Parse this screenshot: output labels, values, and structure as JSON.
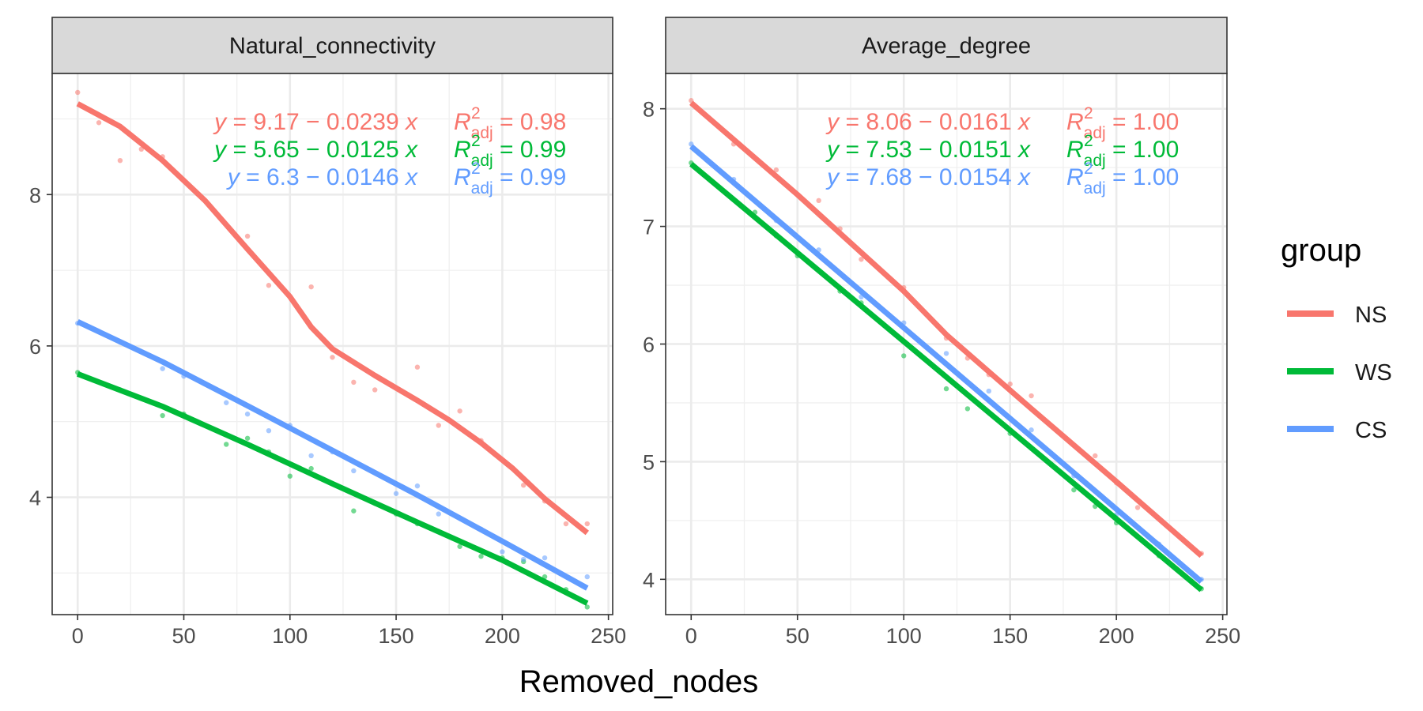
{
  "chart_data": {
    "type": "scatter",
    "facets": [
      {
        "title": "Natural_connectivity",
        "ylim": [
          2.45,
          9.6
        ],
        "yticks": [
          4,
          6,
          8
        ],
        "equations": [
          {
            "group": "NS",
            "lhs": "y",
            "eq": " = 9.17 − 0.0239 ",
            "var": "x",
            "r2_label": "R",
            "r2_sup": "2",
            "r2_sub": "adj",
            "r2_value": " = 0.98"
          },
          {
            "group": "WS",
            "lhs": "y",
            "eq": " = 5.65 − 0.0125 ",
            "var": "x",
            "r2_label": "R",
            "r2_sup": "2",
            "r2_sub": "adj",
            "r2_value": " = 0.99"
          },
          {
            "group": "CS",
            "lhs": "y",
            "eq": " = 6.3 − 0.0146 ",
            "var": "x",
            "r2_label": "R",
            "r2_sup": "2",
            "r2_sub": "adj",
            "r2_value": " = 0.99"
          }
        ],
        "series": [
          {
            "name": "NS",
            "points": [
              [
                0,
                9.35
              ],
              [
                10,
                8.95
              ],
              [
                20,
                8.45
              ],
              [
                30,
                8.6
              ],
              [
                40,
                8.5
              ],
              [
                80,
                7.45
              ],
              [
                90,
                6.8
              ],
              [
                110,
                6.78
              ],
              [
                120,
                5.85
              ],
              [
                130,
                5.52
              ],
              [
                140,
                5.42
              ],
              [
                160,
                5.72
              ],
              [
                170,
                4.95
              ],
              [
                180,
                5.14
              ],
              [
                190,
                4.75
              ],
              [
                210,
                4.16
              ],
              [
                220,
                3.95
              ],
              [
                230,
                3.65
              ],
              [
                240,
                3.65
              ]
            ],
            "trend": [
              [
                0,
                9.2
              ],
              [
                20,
                8.9
              ],
              [
                40,
                8.45
              ],
              [
                60,
                7.92
              ],
              [
                80,
                7.28
              ],
              [
                100,
                6.65
              ],
              [
                110,
                6.25
              ],
              [
                120,
                5.96
              ],
              [
                140,
                5.61
              ],
              [
                160,
                5.28
              ],
              [
                175,
                5.02
              ],
              [
                190,
                4.72
              ],
              [
                205,
                4.38
              ],
              [
                220,
                3.98
              ],
              [
                240,
                3.53
              ]
            ]
          },
          {
            "name": "WS",
            "points": [
              [
                0,
                5.65
              ],
              [
                20,
                5.42
              ],
              [
                40,
                5.08
              ],
              [
                50,
                5.1
              ],
              [
                70,
                4.7
              ],
              [
                80,
                4.78
              ],
              [
                90,
                4.6
              ],
              [
                100,
                4.28
              ],
              [
                110,
                4.38
              ],
              [
                120,
                4.18
              ],
              [
                130,
                3.82
              ],
              [
                140,
                3.92
              ],
              [
                150,
                3.78
              ],
              [
                160,
                3.65
              ],
              [
                170,
                3.55
              ],
              [
                180,
                3.35
              ],
              [
                190,
                3.22
              ],
              [
                200,
                3.2
              ],
              [
                210,
                3.15
              ],
              [
                220,
                2.95
              ],
              [
                230,
                2.78
              ],
              [
                240,
                2.55
              ]
            ],
            "trend": [
              [
                0,
                5.63
              ],
              [
                40,
                5.2
              ],
              [
                80,
                4.7
              ],
              [
                120,
                4.18
              ],
              [
                160,
                3.67
              ],
              [
                200,
                3.17
              ],
              [
                240,
                2.6
              ]
            ]
          },
          {
            "name": "CS",
            "points": [
              [
                0,
                6.3
              ],
              [
                20,
                6.05
              ],
              [
                40,
                5.7
              ],
              [
                50,
                5.6
              ],
              [
                70,
                5.25
              ],
              [
                80,
                5.1
              ],
              [
                90,
                4.88
              ],
              [
                100,
                4.95
              ],
              [
                110,
                4.55
              ],
              [
                120,
                4.6
              ],
              [
                130,
                4.35
              ],
              [
                150,
                4.05
              ],
              [
                160,
                4.15
              ],
              [
                170,
                3.78
              ],
              [
                190,
                3.58
              ],
              [
                200,
                3.28
              ],
              [
                210,
                3.18
              ],
              [
                220,
                3.2
              ],
              [
                240,
                2.95
              ]
            ],
            "trend": [
              [
                0,
                6.32
              ],
              [
                40,
                5.79
              ],
              [
                80,
                5.21
              ],
              [
                120,
                4.62
              ],
              [
                160,
                4.03
              ],
              [
                200,
                3.42
              ],
              [
                240,
                2.8
              ]
            ]
          }
        ]
      },
      {
        "title": "Average_degree",
        "ylim": [
          3.7,
          8.3
        ],
        "yticks": [
          4,
          5,
          6,
          7,
          8
        ],
        "equations": [
          {
            "group": "NS",
            "lhs": "y",
            "eq": " = 8.06 − 0.0161 ",
            "var": "x",
            "r2_label": "R",
            "r2_sup": "2",
            "r2_sub": "adj",
            "r2_value": " = 1.00"
          },
          {
            "group": "WS",
            "lhs": "y",
            "eq": " = 7.53 − 0.0151 ",
            "var": "x",
            "r2_label": "R",
            "r2_sup": "2",
            "r2_sub": "adj",
            "r2_value": " = 1.00"
          },
          {
            "group": "CS",
            "lhs": "y",
            "eq": " = 7.68 − 0.0154 ",
            "var": "x",
            "r2_label": "R",
            "r2_sup": "2",
            "r2_sub": "adj",
            "r2_value": " = 1.00"
          }
        ],
        "series": [
          {
            "name": "NS",
            "points": [
              [
                0,
                8.07
              ],
              [
                20,
                7.7
              ],
              [
                40,
                7.48
              ],
              [
                60,
                7.22
              ],
              [
                70,
                6.98
              ],
              [
                80,
                6.72
              ],
              [
                100,
                6.48
              ],
              [
                120,
                6.05
              ],
              [
                130,
                5.88
              ],
              [
                140,
                5.74
              ],
              [
                150,
                5.66
              ],
              [
                160,
                5.56
              ],
              [
                190,
                5.05
              ],
              [
                200,
                4.82
              ],
              [
                210,
                4.61
              ],
              [
                240,
                4.22
              ]
            ],
            "trend": [
              [
                0,
                8.05
              ],
              [
                50,
                7.27
              ],
              [
                100,
                6.45
              ],
              [
                120,
                6.08
              ],
              [
                160,
                5.45
              ],
              [
                200,
                4.83
              ],
              [
                240,
                4.2
              ]
            ]
          },
          {
            "name": "WS",
            "points": [
              [
                0,
                7.54
              ],
              [
                30,
                7.12
              ],
              [
                40,
                6.92
              ],
              [
                50,
                6.75
              ],
              [
                70,
                6.45
              ],
              [
                80,
                6.35
              ],
              [
                100,
                5.9
              ],
              [
                120,
                5.62
              ],
              [
                130,
                5.45
              ],
              [
                150,
                5.24
              ],
              [
                180,
                4.76
              ],
              [
                190,
                4.62
              ],
              [
                200,
                4.48
              ],
              [
                220,
                4.2
              ],
              [
                240,
                3.92
              ]
            ],
            "trend": [
              [
                0,
                7.53
              ],
              [
                240,
                3.91
              ]
            ]
          },
          {
            "name": "CS",
            "points": [
              [
                0,
                7.7
              ],
              [
                20,
                7.4
              ],
              [
                40,
                7.05
              ],
              [
                60,
                6.8
              ],
              [
                80,
                6.4
              ],
              [
                100,
                6.18
              ],
              [
                120,
                5.92
              ],
              [
                140,
                5.6
              ],
              [
                160,
                5.27
              ],
              [
                180,
                4.88
              ],
              [
                200,
                4.55
              ],
              [
                220,
                4.3
              ],
              [
                240,
                4.0
              ]
            ],
            "trend": [
              [
                0,
                7.68
              ],
              [
                240,
                3.98
              ]
            ]
          }
        ]
      }
    ],
    "x": {
      "label": "Removed_nodes",
      "lim": [
        -12,
        252
      ],
      "ticks": [
        0,
        50,
        100,
        150,
        200,
        250
      ]
    },
    "legend": {
      "title": "group",
      "position": "right",
      "entries": [
        {
          "name": "NS",
          "color": "#F8766D"
        },
        {
          "name": "WS",
          "color": "#00BA38"
        },
        {
          "name": "CS",
          "color": "#619CFF"
        }
      ]
    },
    "grid": true
  },
  "colors": {
    "NS": "#F8766D",
    "WS": "#00BA38",
    "CS": "#619CFF"
  }
}
